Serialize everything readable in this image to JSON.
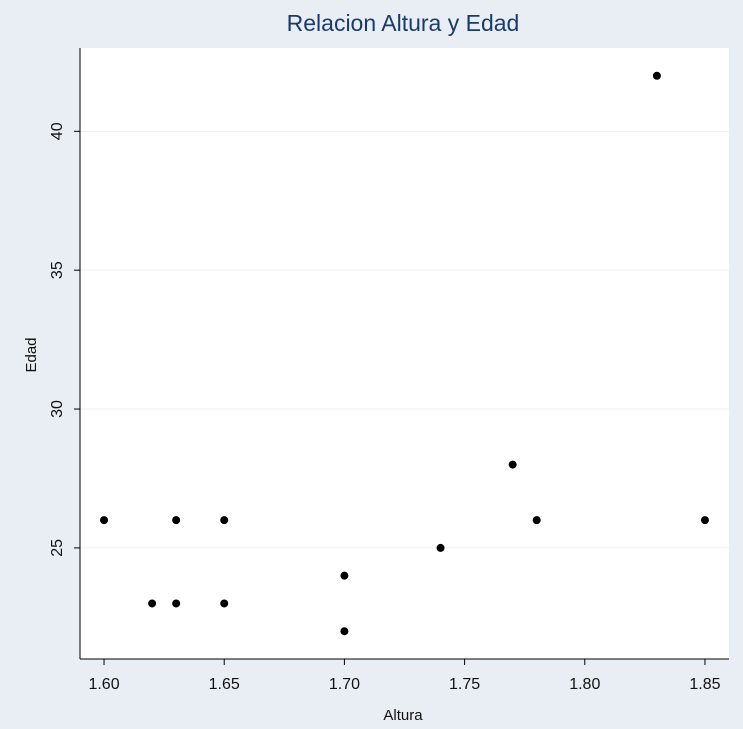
{
  "chart_data": {
    "type": "scatter",
    "title": "Relacion Altura y Edad",
    "xlabel": "Altura",
    "ylabel": "Edad",
    "xlim": [
      1.59,
      1.86
    ],
    "ylim": [
      21,
      43
    ],
    "x_ticks": [
      1.6,
      1.65,
      1.7,
      1.75,
      1.8,
      1.85
    ],
    "x_tick_labels": [
      "1.60",
      "1.65",
      "1.70",
      "1.75",
      "1.80",
      "1.85"
    ],
    "y_ticks": [
      25,
      30,
      35,
      40
    ],
    "y_tick_labels": [
      "25",
      "30",
      "35",
      "40"
    ],
    "grid": true,
    "points": [
      {
        "x": 1.6,
        "y": 26
      },
      {
        "x": 1.62,
        "y": 23
      },
      {
        "x": 1.63,
        "y": 26
      },
      {
        "x": 1.63,
        "y": 23
      },
      {
        "x": 1.65,
        "y": 26
      },
      {
        "x": 1.65,
        "y": 23
      },
      {
        "x": 1.7,
        "y": 24
      },
      {
        "x": 1.7,
        "y": 22
      },
      {
        "x": 1.74,
        "y": 25
      },
      {
        "x": 1.77,
        "y": 28
      },
      {
        "x": 1.78,
        "y": 26
      },
      {
        "x": 1.83,
        "y": 42
      },
      {
        "x": 1.85,
        "y": 26
      }
    ],
    "colors": {
      "page_background": "#e8eef3",
      "plot_background": "#ffffff",
      "title": "#1a3a6b",
      "marker": "#000000",
      "grid": "#eaf0f2"
    }
  }
}
